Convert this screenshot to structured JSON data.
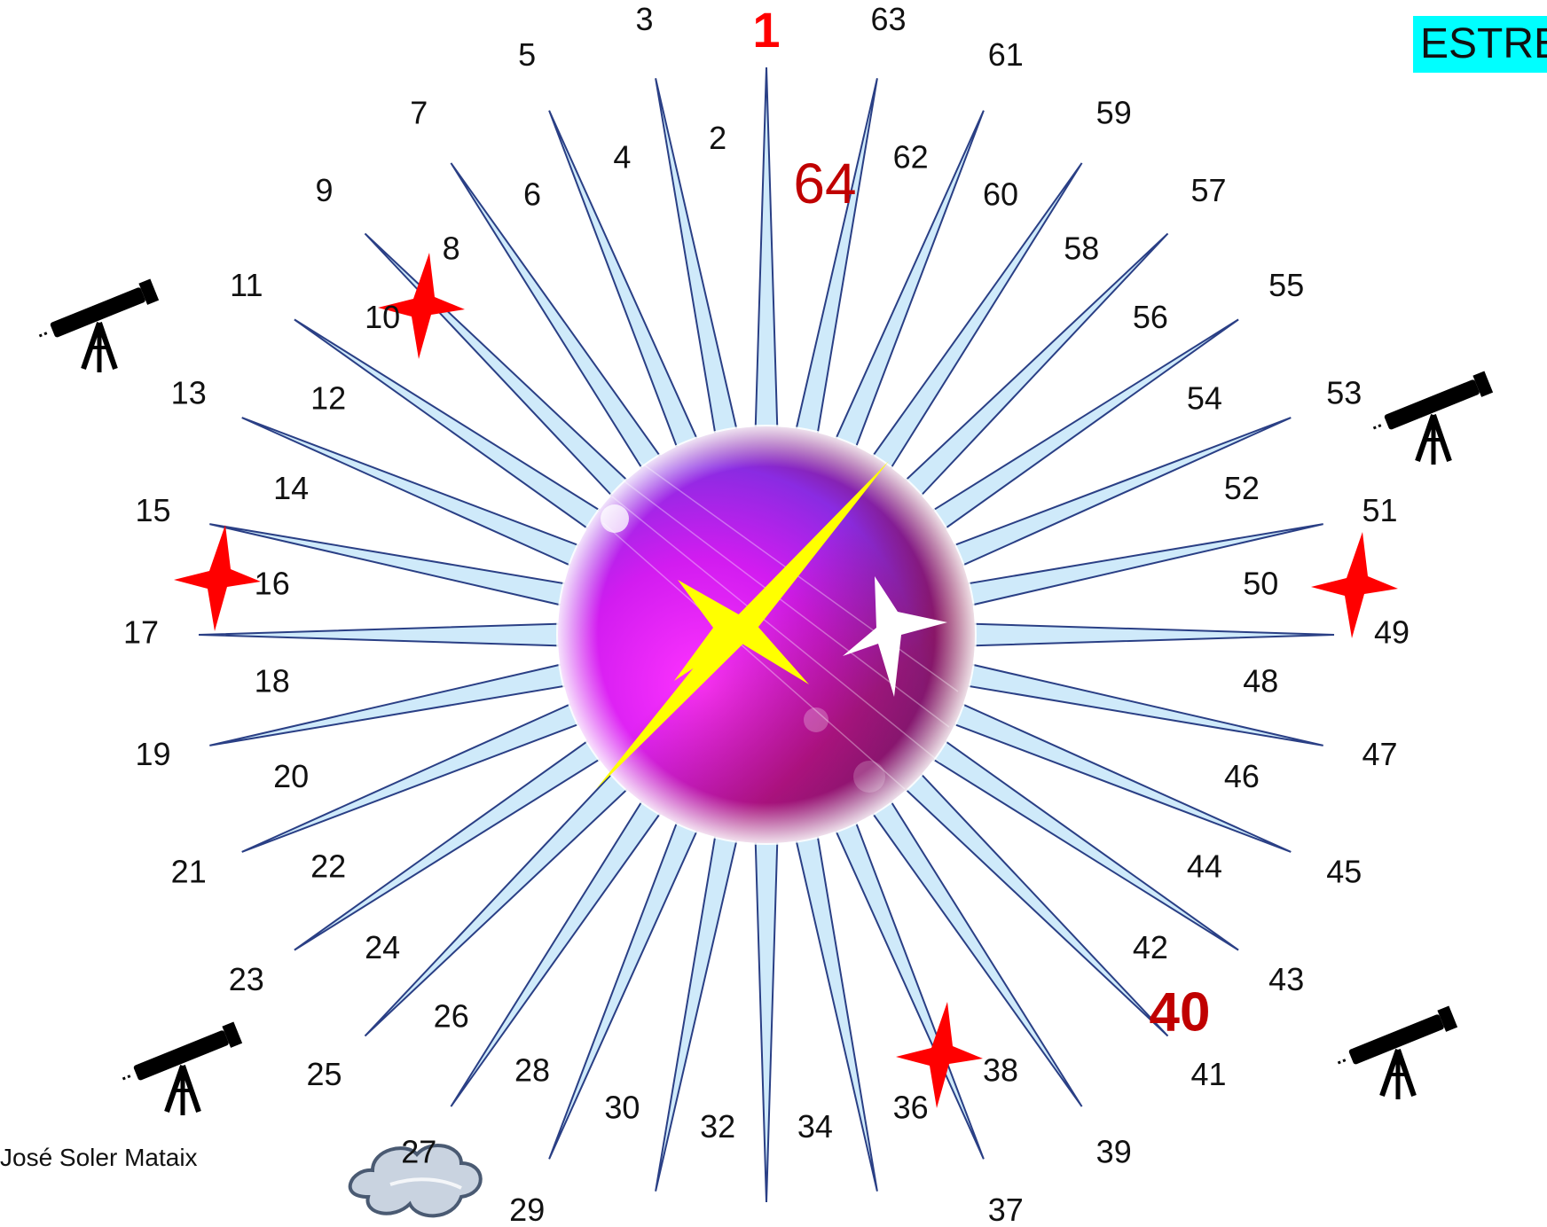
{
  "game": {
    "title": "ESTRE",
    "author": "José Soler Mataix",
    "colors": {
      "spike_fill": "#cfeafa",
      "spike_stroke": "#2a3f85",
      "highlight_red": "#c00000",
      "start_red": "#ff0000",
      "title_bg": "#00ffff",
      "orb_magenta": "#ff33ff",
      "orb_purple": "#8a2be2",
      "orb_maroon": "#7a0a2a",
      "clock_hand": "#ffff00"
    },
    "highlighted_squares": [
      "1",
      "40",
      "64"
    ],
    "outer_numbers": [
      "1",
      "3",
      "5",
      "7",
      "9",
      "11",
      "13",
      "15",
      "17",
      "19",
      "21",
      "23",
      "25",
      "27",
      "29",
      "31",
      "33",
      "35",
      "37",
      "39",
      "41",
      "43",
      "45",
      "47",
      "49",
      "51",
      "53",
      "55",
      "57",
      "59",
      "61",
      "63"
    ],
    "inner_numbers": [
      "2",
      "4",
      "6",
      "8",
      "10",
      "12",
      "14",
      "16",
      "18",
      "20",
      "22",
      "24",
      "26",
      "28",
      "30",
      "32",
      "34",
      "36",
      "38",
      "40",
      "42",
      "44",
      "46",
      "48",
      "50",
      "52",
      "54",
      "56",
      "58",
      "60",
      "62",
      "64"
    ],
    "icons": {
      "telescope_squares": [
        "11",
        "25",
        "41",
        "53"
      ],
      "red_star_squares": [
        "8",
        "16",
        "36",
        "50"
      ],
      "cloud_square": "29",
      "center": [
        "purple-orb",
        "yellow-clock-hands",
        "white-sparkle-star"
      ]
    }
  }
}
